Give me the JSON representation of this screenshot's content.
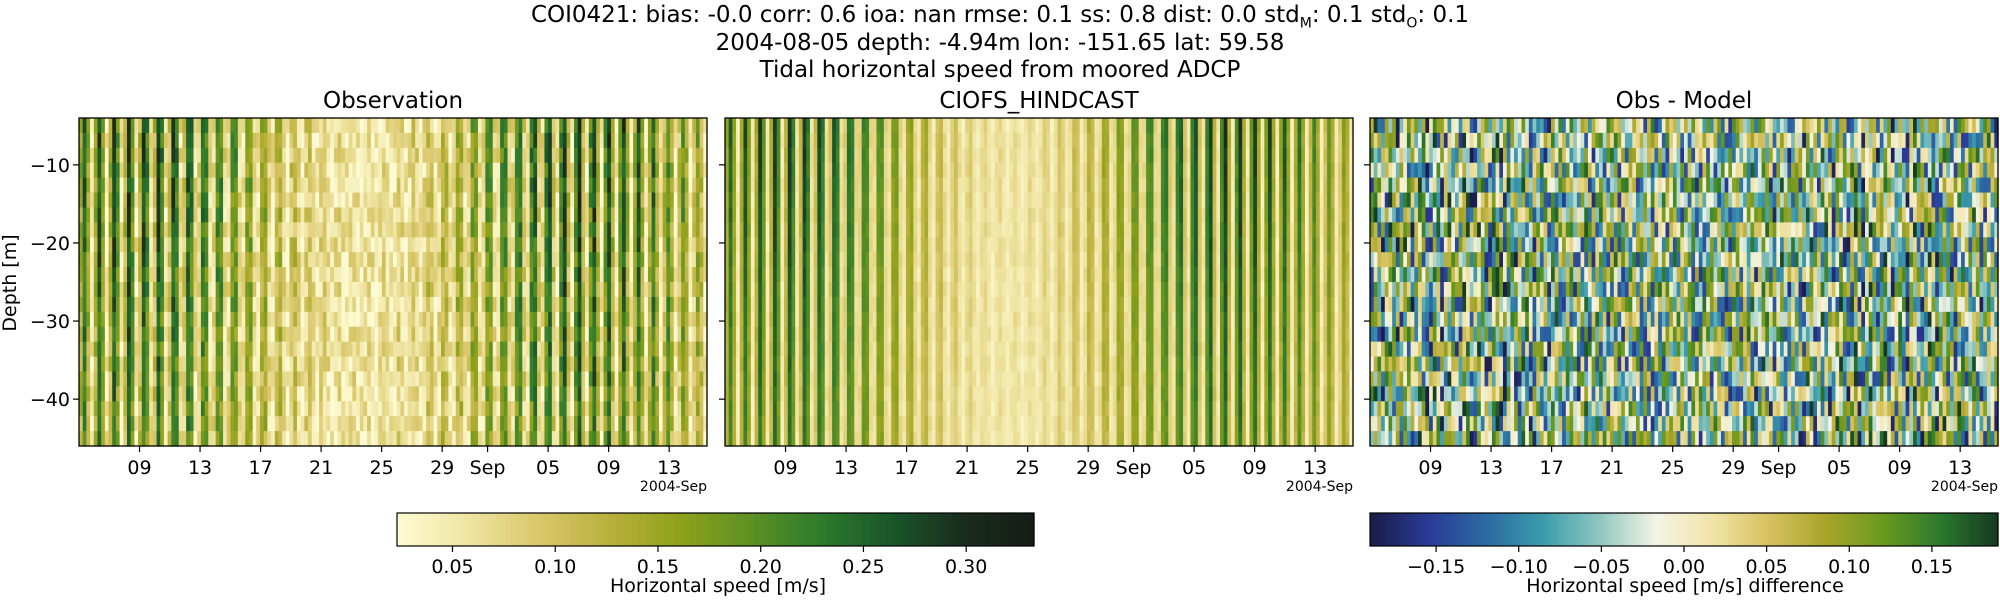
{
  "header": {
    "line1": "COI0421: bias: -0.0  corr: 0.6  ioa: nan  rmse: 0.1  ss: 0.8  dist: 0.0  std",
    "line1_sub_m": "M",
    "line1_mid": ": 0.1  std",
    "line1_sub_o": "O",
    "line1_end": ": 0.1",
    "line2": "2004-08-05 depth: -4.94m lon: -151.65 lat: 59.58",
    "line3": "Tidal horizontal speed from moored ADCP"
  },
  "colors": {
    "speed_colormap": [
      "#fdfbd3",
      "#efe4a2",
      "#d9c76a",
      "#b9b03c",
      "#8fa11c",
      "#5d9124",
      "#2e7a2c",
      "#19562a",
      "#1a2d1e",
      "#161c16"
    ],
    "diff_colormap": [
      "#1b1d4a",
      "#2a3a96",
      "#2c6aa3",
      "#3a9bab",
      "#8ec6c0",
      "#f4f4e6",
      "#f1e4a8",
      "#d6c260",
      "#a8a52a",
      "#6a9a1e",
      "#2c7a2e",
      "#173a22"
    ]
  },
  "chart_data": [
    {
      "type": "heatmap",
      "title": "Observation",
      "ylabel": "Depth [m]",
      "xlabel": "",
      "x_tick_labels": [
        "09",
        "13",
        "17",
        "21",
        "25",
        "29",
        "Sep",
        "05",
        "09",
        "13"
      ],
      "x_offset_label": "2004-Sep",
      "x_range": [
        "2004-08-05",
        "2004-09-15"
      ],
      "y_ticks": [
        -10,
        -20,
        -30,
        -40
      ],
      "y_range": [
        -46,
        -4
      ],
      "colorbar": "speed",
      "value_range": [
        0.02,
        0.33
      ],
      "description_levels": "fine vertical tidal bands; higher speeds late Aug and near 13 Sep"
    },
    {
      "type": "heatmap",
      "title": "CIOFS_HINDCAST",
      "ylabel": "",
      "xlabel": "",
      "x_tick_labels": [
        "09",
        "13",
        "17",
        "21",
        "25",
        "29",
        "Sep",
        "05",
        "09",
        "13"
      ],
      "x_offset_label": "2004-Sep",
      "x_range": [
        "2004-08-05",
        "2004-09-15"
      ],
      "y_range": [
        -46,
        -4
      ],
      "colorbar": "speed",
      "value_range": [
        0.02,
        0.33
      ]
    },
    {
      "type": "heatmap",
      "title": "Obs - Model",
      "ylabel": "",
      "xlabel": "",
      "x_tick_labels": [
        "09",
        "13",
        "17",
        "21",
        "25",
        "29",
        "Sep",
        "05",
        "09",
        "13"
      ],
      "x_offset_label": "2004-Sep",
      "x_range": [
        "2004-08-05",
        "2004-09-15"
      ],
      "y_range": [
        -46,
        -4
      ],
      "colorbar": "diff",
      "value_range": [
        -0.19,
        0.19
      ]
    }
  ],
  "colorbars": {
    "speed": {
      "tick_labels": [
        "0.05",
        "0.10",
        "0.15",
        "0.20",
        "0.25",
        "0.30"
      ],
      "tick_values": [
        0.05,
        0.1,
        0.15,
        0.2,
        0.25,
        0.3
      ],
      "range": [
        0.023,
        0.333
      ],
      "label": "Horizontal speed [m/s]"
    },
    "diff": {
      "tick_labels": [
        "−0.15",
        "−0.10",
        "−0.05",
        "0.00",
        "0.05",
        "0.10",
        "0.15"
      ],
      "tick_values": [
        -0.15,
        -0.1,
        -0.05,
        0.0,
        0.05,
        0.1,
        0.15
      ],
      "range": [
        -0.19,
        0.19
      ],
      "label": "Horizontal speed [m/s] difference"
    }
  }
}
